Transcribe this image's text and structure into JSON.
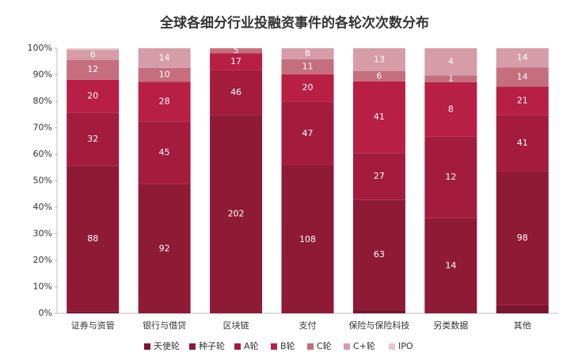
{
  "chart_data": {
    "type": "stacked_percent_bar",
    "title": "全球各细分行业投融资事件的各轮次次数分布",
    "categories": [
      "证券与资管",
      "银行与借贷",
      "区块链",
      "支付",
      "保险与保险科技",
      "另类数据",
      "其他"
    ],
    "series": [
      {
        "name": "天使轮",
        "color": "#7a1230",
        "values": [
          1,
          0,
          0,
          0,
          2,
          0,
          6
        ],
        "value_labels": [
          null,
          null,
          null,
          null,
          null,
          null,
          null
        ]
      },
      {
        "name": "种子轮",
        "color": "#8e1a36",
        "values": [
          88,
          92,
          202,
          108,
          63,
          14,
          98
        ],
        "value_labels": [
          "88",
          "92",
          "202",
          "108",
          "63",
          "14",
          "98"
        ]
      },
      {
        "name": "A轮",
        "color": "#a31c3e",
        "values": [
          32,
          45,
          46,
          47,
          27,
          12,
          41
        ],
        "value_labels": [
          "32",
          "45",
          "46",
          "47",
          "27",
          "12",
          "41"
        ]
      },
      {
        "name": "B轮",
        "color": "#b81f45",
        "values": [
          20,
          28,
          17,
          20,
          41,
          8,
          21
        ],
        "value_labels": [
          "20",
          "28",
          "17",
          "20",
          "41",
          "8",
          "21"
        ]
      },
      {
        "name": "C轮",
        "color": "#c46e7e",
        "values": [
          12,
          10,
          5,
          11,
          6,
          1,
          14
        ],
        "value_labels": [
          "12",
          "10",
          "5",
          "11",
          "6",
          "1",
          "14"
        ]
      },
      {
        "name": "C+轮",
        "color": "#d69ca8",
        "values": [
          6,
          14,
          0,
          8,
          13,
          4,
          14
        ],
        "value_labels": [
          "6",
          "14",
          null,
          "8",
          "13",
          "4",
          "14"
        ]
      },
      {
        "name": "IPO",
        "color": "#e9c6ce",
        "values": [
          1,
          0,
          0,
          0,
          0,
          0,
          0
        ],
        "value_labels": [
          null,
          null,
          null,
          null,
          null,
          null,
          null
        ]
      }
    ],
    "ylim": [
      0,
      100
    ],
    "yticks": [
      {
        "value": 0,
        "label": "0%"
      },
      {
        "value": 10,
        "label": "10%"
      },
      {
        "value": 20,
        "label": "20%"
      },
      {
        "value": 30,
        "label": "30%"
      },
      {
        "value": 40,
        "label": "40%"
      },
      {
        "value": 50,
        "label": "50%"
      },
      {
        "value": 60,
        "label": "60%"
      },
      {
        "value": 70,
        "label": "70%"
      },
      {
        "value": 80,
        "label": "80%"
      },
      {
        "value": 90,
        "label": "90%"
      },
      {
        "value": 100,
        "label": "100%"
      }
    ],
    "legend": "bottom"
  }
}
